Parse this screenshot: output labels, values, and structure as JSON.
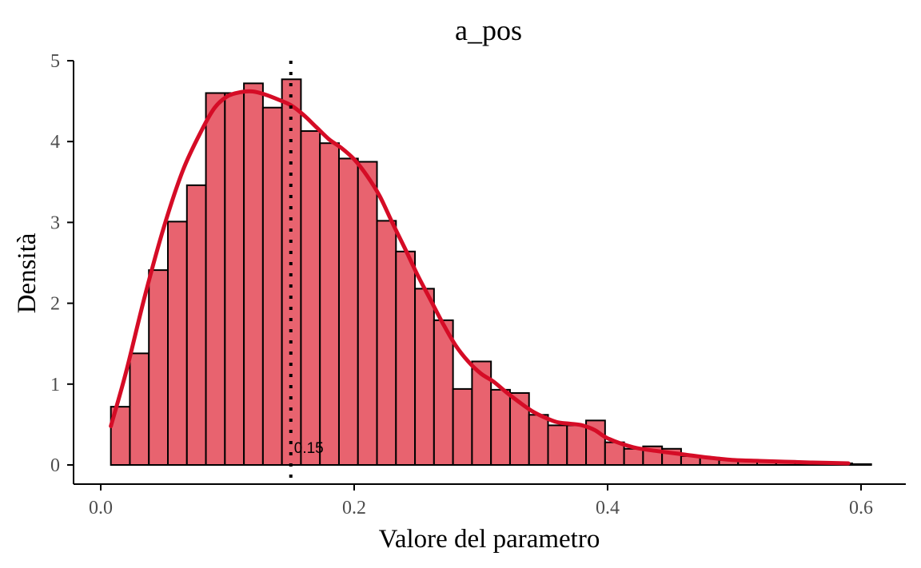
{
  "chart_data": {
    "type": "bar",
    "title": "a_pos",
    "xlabel": "Valore del parametro",
    "ylabel": "Densità",
    "xlim": [
      -0.005,
      0.6
    ],
    "ylim": [
      0,
      5
    ],
    "x_ticks": [
      0.0,
      0.2,
      0.4,
      0.6
    ],
    "x_tick_labels": [
      "0.0",
      "0.2",
      "0.4",
      "0.6"
    ],
    "y_ticks": [
      0,
      1,
      2,
      3,
      4,
      5
    ],
    "y_tick_labels": [
      "0",
      "1",
      "2",
      "3",
      "4",
      "5"
    ],
    "grid": false,
    "histogram": {
      "bin_start": 0.008,
      "bin_width": 0.015,
      "values": [
        0.72,
        1.38,
        2.41,
        3.01,
        3.46,
        4.6,
        4.6,
        4.72,
        4.42,
        4.77,
        4.13,
        3.98,
        3.79,
        3.75,
        3.02,
        2.64,
        2.18,
        1.79,
        0.94,
        1.28,
        0.93,
        0.89,
        0.62,
        0.49,
        0.49,
        0.55,
        0.28,
        0.2,
        0.23,
        0.2,
        0.11,
        0.09,
        0.06,
        0.05,
        0.04,
        0.05,
        0.03,
        0.02,
        0.02,
        0.01
      ],
      "fill": "#e8636f",
      "stroke": "#000000"
    },
    "density": {
      "color": "#d50c26",
      "x": [
        0.008,
        0.02,
        0.035,
        0.05,
        0.065,
        0.08,
        0.09,
        0.1,
        0.11,
        0.12,
        0.13,
        0.14,
        0.15,
        0.16,
        0.17,
        0.18,
        0.19,
        0.2,
        0.21,
        0.22,
        0.23,
        0.24,
        0.25,
        0.26,
        0.27,
        0.28,
        0.29,
        0.3,
        0.31,
        0.32,
        0.33,
        0.34,
        0.35,
        0.36,
        0.37,
        0.38,
        0.39,
        0.4,
        0.42,
        0.44,
        0.46,
        0.48,
        0.5,
        0.52,
        0.54,
        0.56,
        0.59
      ],
      "y": [
        0.48,
        1.15,
        2.1,
        2.95,
        3.65,
        4.15,
        4.42,
        4.56,
        4.61,
        4.62,
        4.58,
        4.52,
        4.45,
        4.33,
        4.18,
        4.03,
        3.92,
        3.78,
        3.58,
        3.33,
        3.0,
        2.68,
        2.35,
        2.05,
        1.75,
        1.48,
        1.28,
        1.13,
        1.03,
        0.9,
        0.78,
        0.67,
        0.59,
        0.53,
        0.51,
        0.49,
        0.43,
        0.33,
        0.22,
        0.17,
        0.13,
        0.09,
        0.06,
        0.05,
        0.04,
        0.03,
        0.02
      ]
    },
    "reference_line": {
      "x": 0.15,
      "label": "0.15",
      "style": "dotted"
    }
  }
}
